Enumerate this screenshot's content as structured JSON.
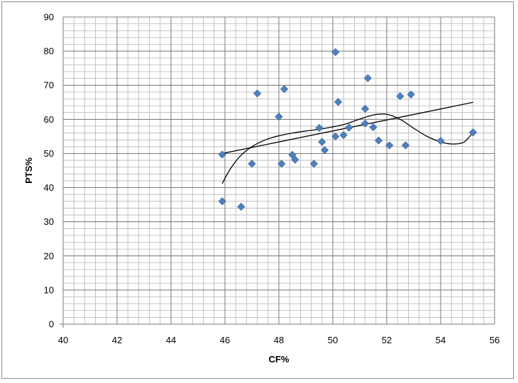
{
  "chart_data": {
    "type": "scatter",
    "title": "",
    "xlabel": "CF%",
    "ylabel": "PTS%",
    "xlim": [
      40,
      56
    ],
    "ylim": [
      0,
      90
    ],
    "x_major_step": 2,
    "x_minor_step": 0.4,
    "y_major_step": 10,
    "y_minor_step": 2,
    "x_tick_labels": [
      "40",
      "42",
      "44",
      "46",
      "48",
      "50",
      "52",
      "54",
      "56"
    ],
    "y_tick_labels": [
      "0",
      "10",
      "20",
      "30",
      "40",
      "50",
      "60",
      "70",
      "80",
      "90"
    ],
    "grid": "on",
    "legend": "none",
    "marker_color": "#4f81bd",
    "trendline_color": "#000000",
    "series": [
      {
        "points": [
          {
            "x": 45.9,
            "y": 49.7
          },
          {
            "x": 45.9,
            "y": 36.0
          },
          {
            "x": 46.6,
            "y": 34.4
          },
          {
            "x": 47.0,
            "y": 47.0
          },
          {
            "x": 47.2,
            "y": 67.6
          },
          {
            "x": 48.0,
            "y": 60.8
          },
          {
            "x": 48.1,
            "y": 47.0
          },
          {
            "x": 48.2,
            "y": 68.9
          },
          {
            "x": 48.5,
            "y": 49.6
          },
          {
            "x": 48.6,
            "y": 48.2
          },
          {
            "x": 49.3,
            "y": 47.0
          },
          {
            "x": 49.5,
            "y": 57.5
          },
          {
            "x": 49.6,
            "y": 53.4
          },
          {
            "x": 49.7,
            "y": 51.0
          },
          {
            "x": 50.1,
            "y": 79.7
          },
          {
            "x": 50.1,
            "y": 55.0
          },
          {
            "x": 50.2,
            "y": 65.1
          },
          {
            "x": 50.4,
            "y": 55.4
          },
          {
            "x": 50.6,
            "y": 57.6
          },
          {
            "x": 51.2,
            "y": 63.1
          },
          {
            "x": 51.2,
            "y": 58.8
          },
          {
            "x": 51.3,
            "y": 72.1
          },
          {
            "x": 51.5,
            "y": 57.7
          },
          {
            "x": 51.7,
            "y": 53.8
          },
          {
            "x": 52.1,
            "y": 52.4
          },
          {
            "x": 52.5,
            "y": 66.8
          },
          {
            "x": 52.7,
            "y": 52.4
          },
          {
            "x": 52.9,
            "y": 67.3
          },
          {
            "x": 54.0,
            "y": 53.7
          },
          {
            "x": 55.2,
            "y": 56.2
          }
        ]
      }
    ],
    "trendlines": [
      {
        "kind": "linear",
        "points": [
          {
            "x": 45.9,
            "y": 50.0
          },
          {
            "x": 55.2,
            "y": 65.0
          }
        ]
      },
      {
        "kind": "polynomial",
        "points": [
          {
            "x": 45.9,
            "y": 41.2
          },
          {
            "x": 46.2,
            "y": 45.5
          },
          {
            "x": 46.6,
            "y": 49.5
          },
          {
            "x": 47.0,
            "y": 52.0
          },
          {
            "x": 47.5,
            "y": 54.0
          },
          {
            "x": 48.0,
            "y": 55.2
          },
          {
            "x": 48.5,
            "y": 56.0
          },
          {
            "x": 49.0,
            "y": 56.6
          },
          {
            "x": 49.5,
            "y": 57.1
          },
          {
            "x": 50.0,
            "y": 57.8
          },
          {
            "x": 50.5,
            "y": 58.7
          },
          {
            "x": 51.0,
            "y": 60.1
          },
          {
            "x": 51.5,
            "y": 61.3
          },
          {
            "x": 52.0,
            "y": 61.5
          },
          {
            "x": 52.5,
            "y": 60.0
          },
          {
            "x": 53.0,
            "y": 57.4
          },
          {
            "x": 53.5,
            "y": 55.0
          },
          {
            "x": 54.0,
            "y": 53.4
          },
          {
            "x": 54.4,
            "y": 52.8
          },
          {
            "x": 54.8,
            "y": 53.1
          },
          {
            "x": 55.0,
            "y": 54.3
          },
          {
            "x": 55.2,
            "y": 56.2
          }
        ]
      }
    ]
  }
}
